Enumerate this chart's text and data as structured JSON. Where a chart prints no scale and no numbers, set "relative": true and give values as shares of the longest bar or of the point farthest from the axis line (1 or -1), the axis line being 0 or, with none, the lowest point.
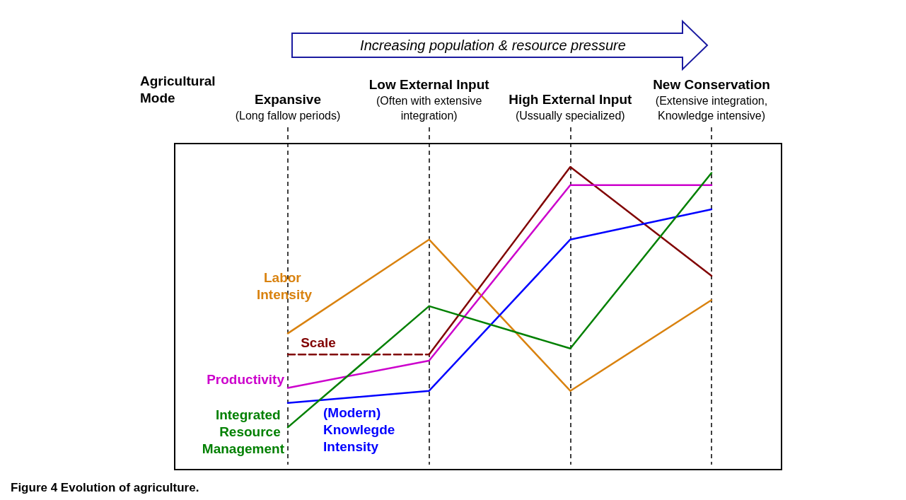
{
  "chart_data": {
    "type": "line",
    "title": "Figure 4 Evolution of agriculture.",
    "xlabel": "Agricultural Mode",
    "annotations": [
      "Increasing population & resource pressure"
    ],
    "categories": [
      "Expansive (Long fallow periods)",
      "Low External Input (Often with extensive integration)",
      "High External Input (Ussually specialized)",
      "New Conservation (Extensive integration, Knowledge intensive)"
    ],
    "relative": true,
    "grid": "x",
    "marker": "none",
    "legend": false,
    "series": [
      {
        "name": "Labor Intensity",
        "color": "#d9820f",
        "values": [
          0.45,
          0.76,
          0.26,
          0.56
        ]
      },
      {
        "name": "Scale",
        "color": "#800000",
        "line_style": "dashed",
        "values": [
          0.38,
          0.38,
          null,
          null
        ]
      },
      {
        "color": "#800000",
        "values": [
          null,
          0.38,
          1,
          0.64
        ]
      },
      {
        "name": "Productivity",
        "color": "#cc00cc",
        "values": [
          0.27,
          0.36,
          0.94,
          0.94
        ]
      },
      {
        "name": "(Modern) Knowlegde Intensity",
        "color": "#0000ff",
        "values": [
          0.22,
          0.26,
          0.76,
          0.86
        ]
      },
      {
        "name": "Integrated Resource Management",
        "color": "#008000",
        "values": [
          0.14,
          0.54,
          0.4,
          0.98
        ]
      }
    ]
  }
}
